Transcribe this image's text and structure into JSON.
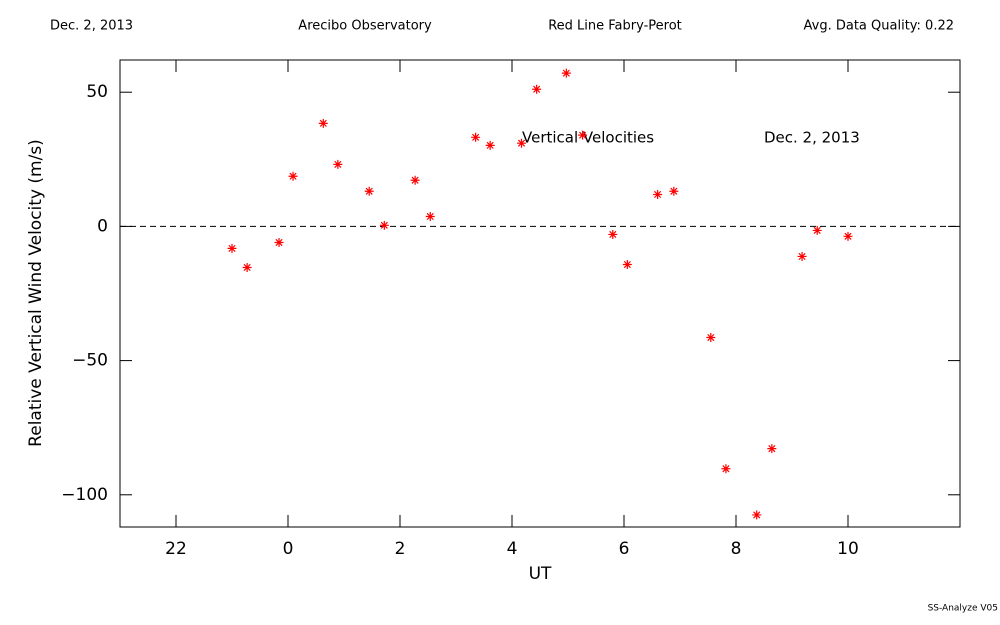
{
  "chart_data": {
    "type": "scatter",
    "header": [
      "Dec. 2, 2013",
      "Arecibo Observatory",
      "Red Line Fabry-Perot",
      "Avg. Data Quality: 0.22"
    ],
    "xlabel": "UT",
    "ylabel": "Relative Vertical Wind Velocity (m/s)",
    "annotations": [
      "Vertical Velocities",
      "Dec. 2, 2013"
    ],
    "footer": "SS-Analyze V05",
    "color": "#ff0000",
    "xlim": [
      -3,
      12
    ],
    "ylim": [
      -112,
      62
    ],
    "xticks": [
      {
        "value": -2,
        "label": "22"
      },
      0,
      2,
      4,
      6,
      8,
      10
    ],
    "yticks": [
      {
        "value": -100,
        "label": "−100"
      },
      {
        "value": -50,
        "label": "−50"
      },
      0,
      50
    ],
    "reference_line": 0,
    "x": [
      -1.0,
      -0.73,
      -0.16,
      0.09,
      0.63,
      0.89,
      1.45,
      1.72,
      2.27,
      2.54,
      3.35,
      3.61,
      4.17,
      4.44,
      4.97,
      5.26,
      5.8,
      6.06,
      6.6,
      6.89,
      7.55,
      7.82,
      8.37,
      8.64,
      9.18,
      9.45,
      10.0
    ],
    "values": [
      -8.2,
      -15.3,
      -6.0,
      18.7,
      38.4,
      23.1,
      13.1,
      0.4,
      17.2,
      3.7,
      33.2,
      30.2,
      31.0,
      51.1,
      57.1,
      34.0,
      -3.0,
      -14.2,
      11.9,
      13.1,
      -41.4,
      -90.3,
      -107.5,
      -82.8,
      -11.2,
      -1.5,
      -3.7
    ]
  }
}
